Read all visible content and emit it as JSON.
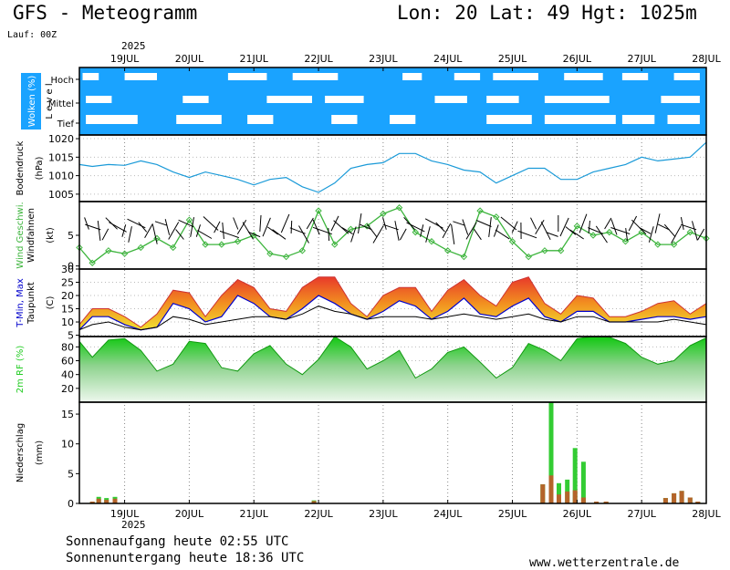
{
  "header": {
    "title": "GFS - Meteogramm",
    "location": "Lon: 20  Lat: 49  Hgt: 1025m",
    "run": "Lauf: 00Z",
    "year": "2025"
  },
  "footer": {
    "sunrise": "Sonnenaufgang heute 02:55 UTC",
    "sunset": "Sonnenuntergang heute 18:36 UTC",
    "website": "www.wetterzentrale.de"
  },
  "chart_data": {
    "type": "meteogram",
    "x_axis": {
      "labels": [
        "19JUL",
        "20JUL",
        "21JUL",
        "22JUL",
        "23JUL",
        "24JUL",
        "25JUL",
        "26JUL",
        "27JUL",
        "28JUL"
      ],
      "range_days": [
        18.3,
        28.0
      ]
    },
    "colors": {
      "cloud_bg": "#1aa3ff",
      "pressure": "#1a9ad8",
      "wind": "#3cb43c",
      "tmax": "#e33",
      "tmin": "#00c",
      "rh": "#22cc22",
      "precip_rain": "#33cc33",
      "precip_conv": "#b4642a"
    },
    "panels": [
      {
        "id": "clouds",
        "ylabel_parts": [
          "Wolken (%)",
          "L e v e l"
        ],
        "levels": [
          "Hoch",
          "Mittel",
          "Tief"
        ],
        "high": [
          [
            18.35,
            18.6
          ],
          [
            19.0,
            19.5
          ],
          [
            20.6,
            21.2
          ],
          [
            21.6,
            22.3
          ],
          [
            23.3,
            23.6
          ],
          [
            24.1,
            24.5
          ],
          [
            24.7,
            25.4
          ],
          [
            25.8,
            26.4
          ],
          [
            26.7,
            27.1
          ],
          [
            27.5,
            27.9
          ]
        ],
        "middle": [
          [
            18.4,
            18.8
          ],
          [
            19.9,
            20.3
          ],
          [
            21.2,
            21.9
          ],
          [
            22.1,
            22.7
          ],
          [
            23.8,
            24.3
          ],
          [
            24.6,
            25.1
          ],
          [
            25.5,
            26.5
          ],
          [
            27.3,
            27.9
          ]
        ],
        "low": [
          [
            18.4,
            19.2
          ],
          [
            19.8,
            20.5
          ],
          [
            20.9,
            21.3
          ],
          [
            22.2,
            22.6
          ],
          [
            23.1,
            23.5
          ],
          [
            24.6,
            25.3
          ],
          [
            25.5,
            26.6
          ],
          [
            26.7,
            27.2
          ],
          [
            27.4,
            27.9
          ]
        ]
      },
      {
        "id": "pressure",
        "ylabel_parts": [
          "Bodendruck",
          "(hPa)"
        ],
        "yticks": [
          1005,
          1010,
          1015,
          1020
        ],
        "ylim": [
          1003,
          1021
        ],
        "x": [
          18.3,
          18.5,
          18.75,
          19.0,
          19.25,
          19.5,
          19.75,
          20.0,
          20.25,
          20.5,
          20.75,
          21.0,
          21.25,
          21.5,
          21.75,
          22.0,
          22.25,
          22.5,
          22.75,
          23.0,
          23.25,
          23.5,
          23.75,
          24.0,
          24.25,
          24.5,
          24.75,
          25.0,
          25.25,
          25.5,
          25.75,
          26.0,
          26.25,
          26.5,
          26.75,
          27.0,
          27.25,
          27.5,
          27.75,
          28.0
        ],
        "values": [
          1013,
          1012.5,
          1013,
          1012.8,
          1014,
          1013,
          1011,
          1009.5,
          1011,
          1010,
          1009,
          1007.5,
          1009,
          1009.5,
          1007,
          1005.5,
          1008,
          1012,
          1013,
          1013.5,
          1016,
          1016,
          1014,
          1013,
          1011.5,
          1011,
          1008,
          1010,
          1012,
          1012,
          1009,
          1009,
          1011,
          1012,
          1013,
          1015,
          1014,
          1014.5,
          1015,
          1019
        ]
      },
      {
        "id": "wind",
        "ylabel_parts": [
          "Wind Geschwi.",
          "Windfahnen",
          "(kt)"
        ],
        "yticks": [
          0,
          5
        ],
        "ylim": [
          -0.5,
          10.5
        ],
        "x": [
          18.3,
          18.5,
          18.75,
          19.0,
          19.25,
          19.5,
          19.75,
          20.0,
          20.25,
          20.5,
          20.75,
          21.0,
          21.25,
          21.5,
          21.75,
          22.0,
          22.25,
          22.5,
          22.75,
          23.0,
          23.25,
          23.5,
          23.75,
          24.0,
          24.25,
          24.5,
          24.75,
          25.0,
          25.25,
          25.5,
          25.75,
          26.0,
          26.25,
          26.5,
          26.75,
          27.0,
          27.25,
          27.5,
          27.75,
          28.0
        ],
        "values": [
          3,
          0.5,
          2.5,
          2,
          3,
          4.5,
          3,
          7.5,
          3.5,
          3.5,
          4,
          5,
          2,
          1.5,
          2.5,
          9,
          3.5,
          6,
          6.5,
          8.5,
          9.5,
          5.5,
          4,
          2.5,
          1.5,
          9,
          8,
          4,
          1.5,
          2.5,
          2.5,
          6.5,
          5,
          5.5,
          4,
          5.5,
          3.5,
          3.5,
          5.5,
          4.5
        ]
      },
      {
        "id": "temperature",
        "ylabel_parts": [
          "T-Min, Max",
          "Taupunkt",
          "(C)"
        ],
        "yticks": [
          5,
          10,
          15,
          20,
          25,
          30
        ],
        "ylim": [
          4.5,
          30
        ],
        "x": [
          18.3,
          18.5,
          18.75,
          19.0,
          19.25,
          19.5,
          19.75,
          20.0,
          20.25,
          20.5,
          20.75,
          21.0,
          21.25,
          21.5,
          21.75,
          22.0,
          22.25,
          22.5,
          22.75,
          23.0,
          23.25,
          23.5,
          23.75,
          24.0,
          24.25,
          24.5,
          24.75,
          25.0,
          25.25,
          25.5,
          25.75,
          26.0,
          26.25,
          26.5,
          26.75,
          27.0,
          27.25,
          27.5,
          27.75,
          28.0
        ],
        "tmax": [
          9,
          15,
          15,
          12,
          8,
          13,
          22,
          21,
          12,
          20,
          26,
          23,
          15,
          14,
          23,
          27,
          27,
          17,
          12,
          20,
          23,
          23,
          14,
          22,
          26,
          20,
          16,
          25,
          27,
          17,
          13,
          20,
          19,
          12,
          12,
          14,
          17,
          18,
          13,
          17
        ],
        "tmin": [
          7,
          12,
          12,
          9,
          7,
          8,
          17,
          15,
          10,
          12,
          20,
          17,
          12,
          11,
          15,
          20,
          17,
          13,
          11,
          14,
          18,
          16,
          11,
          14,
          19,
          13,
          12,
          16,
          19,
          12,
          10,
          14,
          14,
          10,
          10,
          11,
          12,
          12,
          11,
          12
        ],
        "dewpoint": [
          7,
          9,
          10,
          8,
          7,
          8,
          12,
          11,
          9,
          10,
          11,
          12,
          12,
          11,
          13,
          16,
          14,
          13,
          11,
          12,
          12,
          12,
          11,
          12,
          13,
          12,
          11,
          12,
          13,
          11,
          10,
          12,
          12,
          10,
          10,
          10,
          10,
          11,
          10,
          9
        ]
      },
      {
        "id": "humidity",
        "ylabel_parts": [
          "2m RF (%)"
        ],
        "yticks": [
          20,
          40,
          60,
          80
        ],
        "ylim": [
          0,
          95
        ],
        "x": [
          18.3,
          18.5,
          18.75,
          19.0,
          19.25,
          19.5,
          19.75,
          20.0,
          20.25,
          20.5,
          20.75,
          21.0,
          21.25,
          21.5,
          21.75,
          22.0,
          22.25,
          22.5,
          22.75,
          23.0,
          23.25,
          23.5,
          23.75,
          24.0,
          24.25,
          24.5,
          24.75,
          25.0,
          25.25,
          25.5,
          25.75,
          26.0,
          26.25,
          26.5,
          26.75,
          27.0,
          27.25,
          27.5,
          27.75,
          28.0
        ],
        "values": [
          88,
          65,
          90,
          92,
          75,
          45,
          55,
          88,
          85,
          50,
          45,
          70,
          82,
          55,
          40,
          62,
          95,
          80,
          48,
          60,
          75,
          35,
          48,
          72,
          80,
          58,
          35,
          50,
          85,
          75,
          60,
          92,
          95,
          94,
          85,
          65,
          55,
          60,
          82,
          93
        ]
      },
      {
        "id": "precip",
        "ylabel_parts": [
          "Niederschlag",
          "(mm)"
        ],
        "yticks": [
          0,
          5,
          10,
          15
        ],
        "ylim": [
          0,
          17
        ],
        "bars": [
          {
            "x": 18.5,
            "total": 0.3,
            "conv": 0.3
          },
          {
            "x": 18.6,
            "total": 1.1,
            "conv": 0.8
          },
          {
            "x": 18.72,
            "total": 0.9,
            "conv": 0.6
          },
          {
            "x": 18.85,
            "total": 1.1,
            "conv": 0.8
          },
          {
            "x": 21.93,
            "total": 0.5,
            "conv": 0.4
          },
          {
            "x": 25.47,
            "total": 3.2,
            "conv": 3.2
          },
          {
            "x": 25.6,
            "total": 17.0,
            "conv": 4.7
          },
          {
            "x": 25.72,
            "total": 3.4,
            "conv": 1.5
          },
          {
            "x": 25.85,
            "total": 4.0,
            "conv": 2.0
          },
          {
            "x": 25.97,
            "total": 9.3,
            "conv": 2.2
          },
          {
            "x": 26.1,
            "total": 7.0,
            "conv": 1.0
          },
          {
            "x": 26.3,
            "total": 0.3,
            "conv": 0.3
          },
          {
            "x": 26.45,
            "total": 0.3,
            "conv": 0.3
          },
          {
            "x": 27.37,
            "total": 0.9,
            "conv": 0.9
          },
          {
            "x": 27.5,
            "total": 1.7,
            "conv": 1.7
          },
          {
            "x": 27.62,
            "total": 2.1,
            "conv": 2.1
          },
          {
            "x": 27.75,
            "total": 1.0,
            "conv": 1.0
          },
          {
            "x": 27.87,
            "total": 0.3,
            "conv": 0.3
          }
        ]
      }
    ]
  }
}
